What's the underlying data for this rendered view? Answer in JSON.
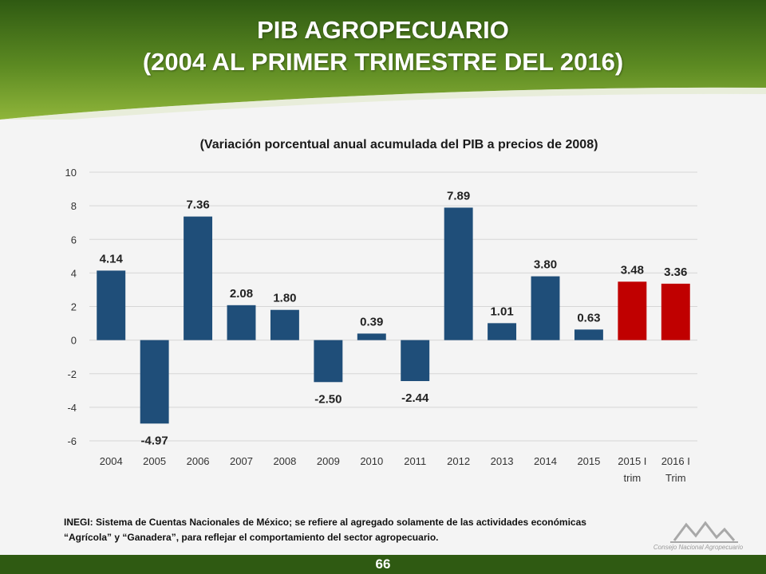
{
  "header": {
    "title_line1": "PIB AGROPECUARIO",
    "title_line2": "(2004 AL PRIMER TRIMESTRE DEL 2016)"
  },
  "colors": {
    "banner_dark": "#2f5a12",
    "banner_light": "#8fb53a",
    "bar_blue": "#1f4e79",
    "bar_red": "#c00000"
  },
  "chart_data": {
    "type": "bar",
    "title": "(Variación porcentual anual acumulada del PIB a precios de 2008)",
    "categories": [
      "2004",
      "2005",
      "2006",
      "2007",
      "2008",
      "2009",
      "2010",
      "2011",
      "2012",
      "2013",
      "2014",
      "2015",
      "2015 I trim",
      "2016 I Trim"
    ],
    "category_lines": [
      [
        "2004"
      ],
      [
        "2005"
      ],
      [
        "2006"
      ],
      [
        "2007"
      ],
      [
        "2008"
      ],
      [
        "2009"
      ],
      [
        "2010"
      ],
      [
        "2011"
      ],
      [
        "2012"
      ],
      [
        "2013"
      ],
      [
        "2014"
      ],
      [
        "2015"
      ],
      [
        "2015 I",
        "trim"
      ],
      [
        "2016 I",
        "Trim"
      ]
    ],
    "values": [
      4.14,
      -4.97,
      7.36,
      2.08,
      1.8,
      -2.5,
      0.39,
      -2.44,
      7.89,
      1.01,
      3.8,
      0.63,
      3.48,
      3.36
    ],
    "value_labels": [
      "4.14",
      "-4.97",
      "7.36",
      "2.08",
      "1.80",
      "-2.50",
      "0.39",
      "-2.44",
      "7.89",
      "1.01",
      "3.80",
      "0.63",
      "3.48",
      "3.36"
    ],
    "highlighted": [
      false,
      false,
      false,
      false,
      false,
      false,
      false,
      false,
      false,
      false,
      false,
      false,
      true,
      true
    ],
    "ylim": [
      -6,
      10
    ],
    "yticks": [
      -6,
      -4,
      -2,
      0,
      2,
      4,
      6,
      8,
      10
    ],
    "grid": true,
    "legend": "none"
  },
  "footnote": {
    "line1": "INEGI: Sistema de Cuentas Nacionales de México; se refiere al agregado solamente de las actividades económicas",
    "line2": "“Agrícola” y “Ganadera”, para reflejar el comportamiento del sector agropecuario."
  },
  "page_number": "66",
  "logo": {
    "icon": "mountain-peaks-logo-icon",
    "text": "Consejo Nacional Agropecuario"
  }
}
